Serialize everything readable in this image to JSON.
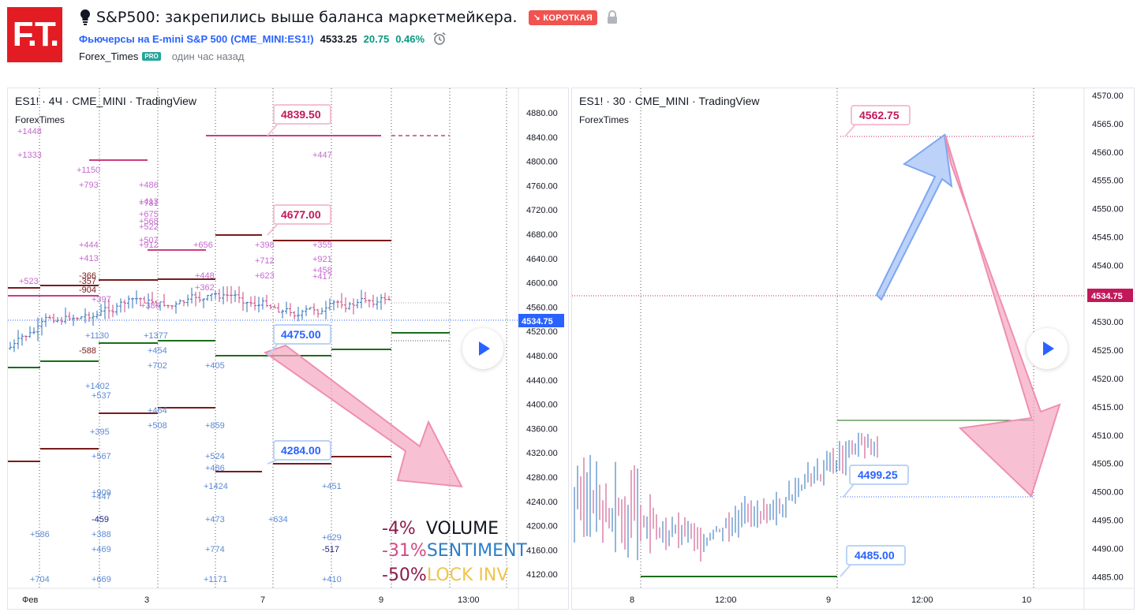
{
  "header": {
    "logo_text": "F.T.",
    "title": "S&P500: закрепились выше баланса маркетмейкера.",
    "badge": "↘ КОРОТКАЯ",
    "symbol_name": "Фьючерсы на E-mini S&P 500",
    "symbol_code": "(CME_MINI:ES1!)",
    "price": "4533.25",
    "change": "20.75",
    "change_pct": "0.46%",
    "author": "Forex_Times",
    "pro_badge": "PRO",
    "time_ago": "один час назад"
  },
  "colors": {
    "brand_red": "#e31b23",
    "short_badge": "#f05350",
    "up": "#089981",
    "link": "#2962ff",
    "marker_pink": "#c93f7f",
    "marker_green": "#1b6e1b",
    "marker_maroon": "#7a1b1b",
    "price_label": "#2962ff",
    "price_label_right": "#c2185b"
  },
  "left_chart": {
    "legend": "ES1! · 4Ч · CME_MINI · TradingView",
    "sub": "ForexTimes",
    "axis_labels": [
      "4880.00",
      "4840.00",
      "4800.00",
      "4760.00",
      "4720.00",
      "4680.00",
      "4640.00",
      "4600.00",
      "4560.00",
      "4520.00",
      "4480.00",
      "4440.00",
      "4400.00",
      "4360.00",
      "4320.00",
      "4280.00",
      "4240.00",
      "4200.00",
      "4160.00",
      "4120.00"
    ],
    "current_price": "4534.75",
    "time_labels": [
      "Фев",
      "3",
      "7",
      "9",
      "13:00"
    ],
    "callouts": [
      "4839.50",
      "4677.00",
      "4475.00",
      "4284.00"
    ],
    "pink_numbers": [
      "+1448",
      "+1333",
      "+1150",
      "+793",
      "+486",
      "+413",
      "+781",
      "+675",
      "+568",
      "+522",
      "+507",
      "+912",
      "+444",
      "+413",
      "+656",
      "+398",
      "+712",
      "+623",
      "+447",
      "+355",
      "+921",
      "+458",
      "+417",
      "+448",
      "+362",
      "+523",
      "-366",
      "-357",
      "-904",
      "+397",
      "+386"
    ],
    "blue_numbers": [
      "+1130",
      "+1377",
      "+454",
      "+702",
      "+405",
      "-588",
      "+1402",
      "+537",
      "+464",
      "+508",
      "+859",
      "+395",
      "+567",
      "+524",
      "+486",
      "+1424",
      "+451",
      "+909",
      "+447",
      "-459",
      "+473",
      "+634",
      "+586",
      "+388",
      "+629",
      "+469",
      "+774",
      "-517",
      "+704",
      "+669",
      "+1171",
      "+410"
    ],
    "summary": [
      {
        "pct": "-4%",
        "label": "VOLUME"
      },
      {
        "pct": "-31%",
        "label": "SENTIMENT"
      },
      {
        "pct": "-50%",
        "label": "LOCK INV"
      }
    ]
  },
  "right_chart": {
    "legend": "ES1! · 30 · CME_MINI · TradingView",
    "sub": "ForexTimes",
    "axis_labels": [
      "4570.00",
      "4565.00",
      "4560.00",
      "4555.00",
      "4550.00",
      "4545.00",
      "4540.00",
      "4535.00",
      "4530.00",
      "4525.00",
      "4520.00",
      "4515.00",
      "4510.00",
      "4505.00",
      "4500.00",
      "4495.00",
      "4490.00",
      "4485.00"
    ],
    "current_price": "4534.75",
    "time_labels": [
      "8",
      "12:00",
      "9",
      "12:00",
      "10"
    ],
    "callouts": [
      "4562.75",
      "4499.25",
      "4485.00"
    ]
  }
}
